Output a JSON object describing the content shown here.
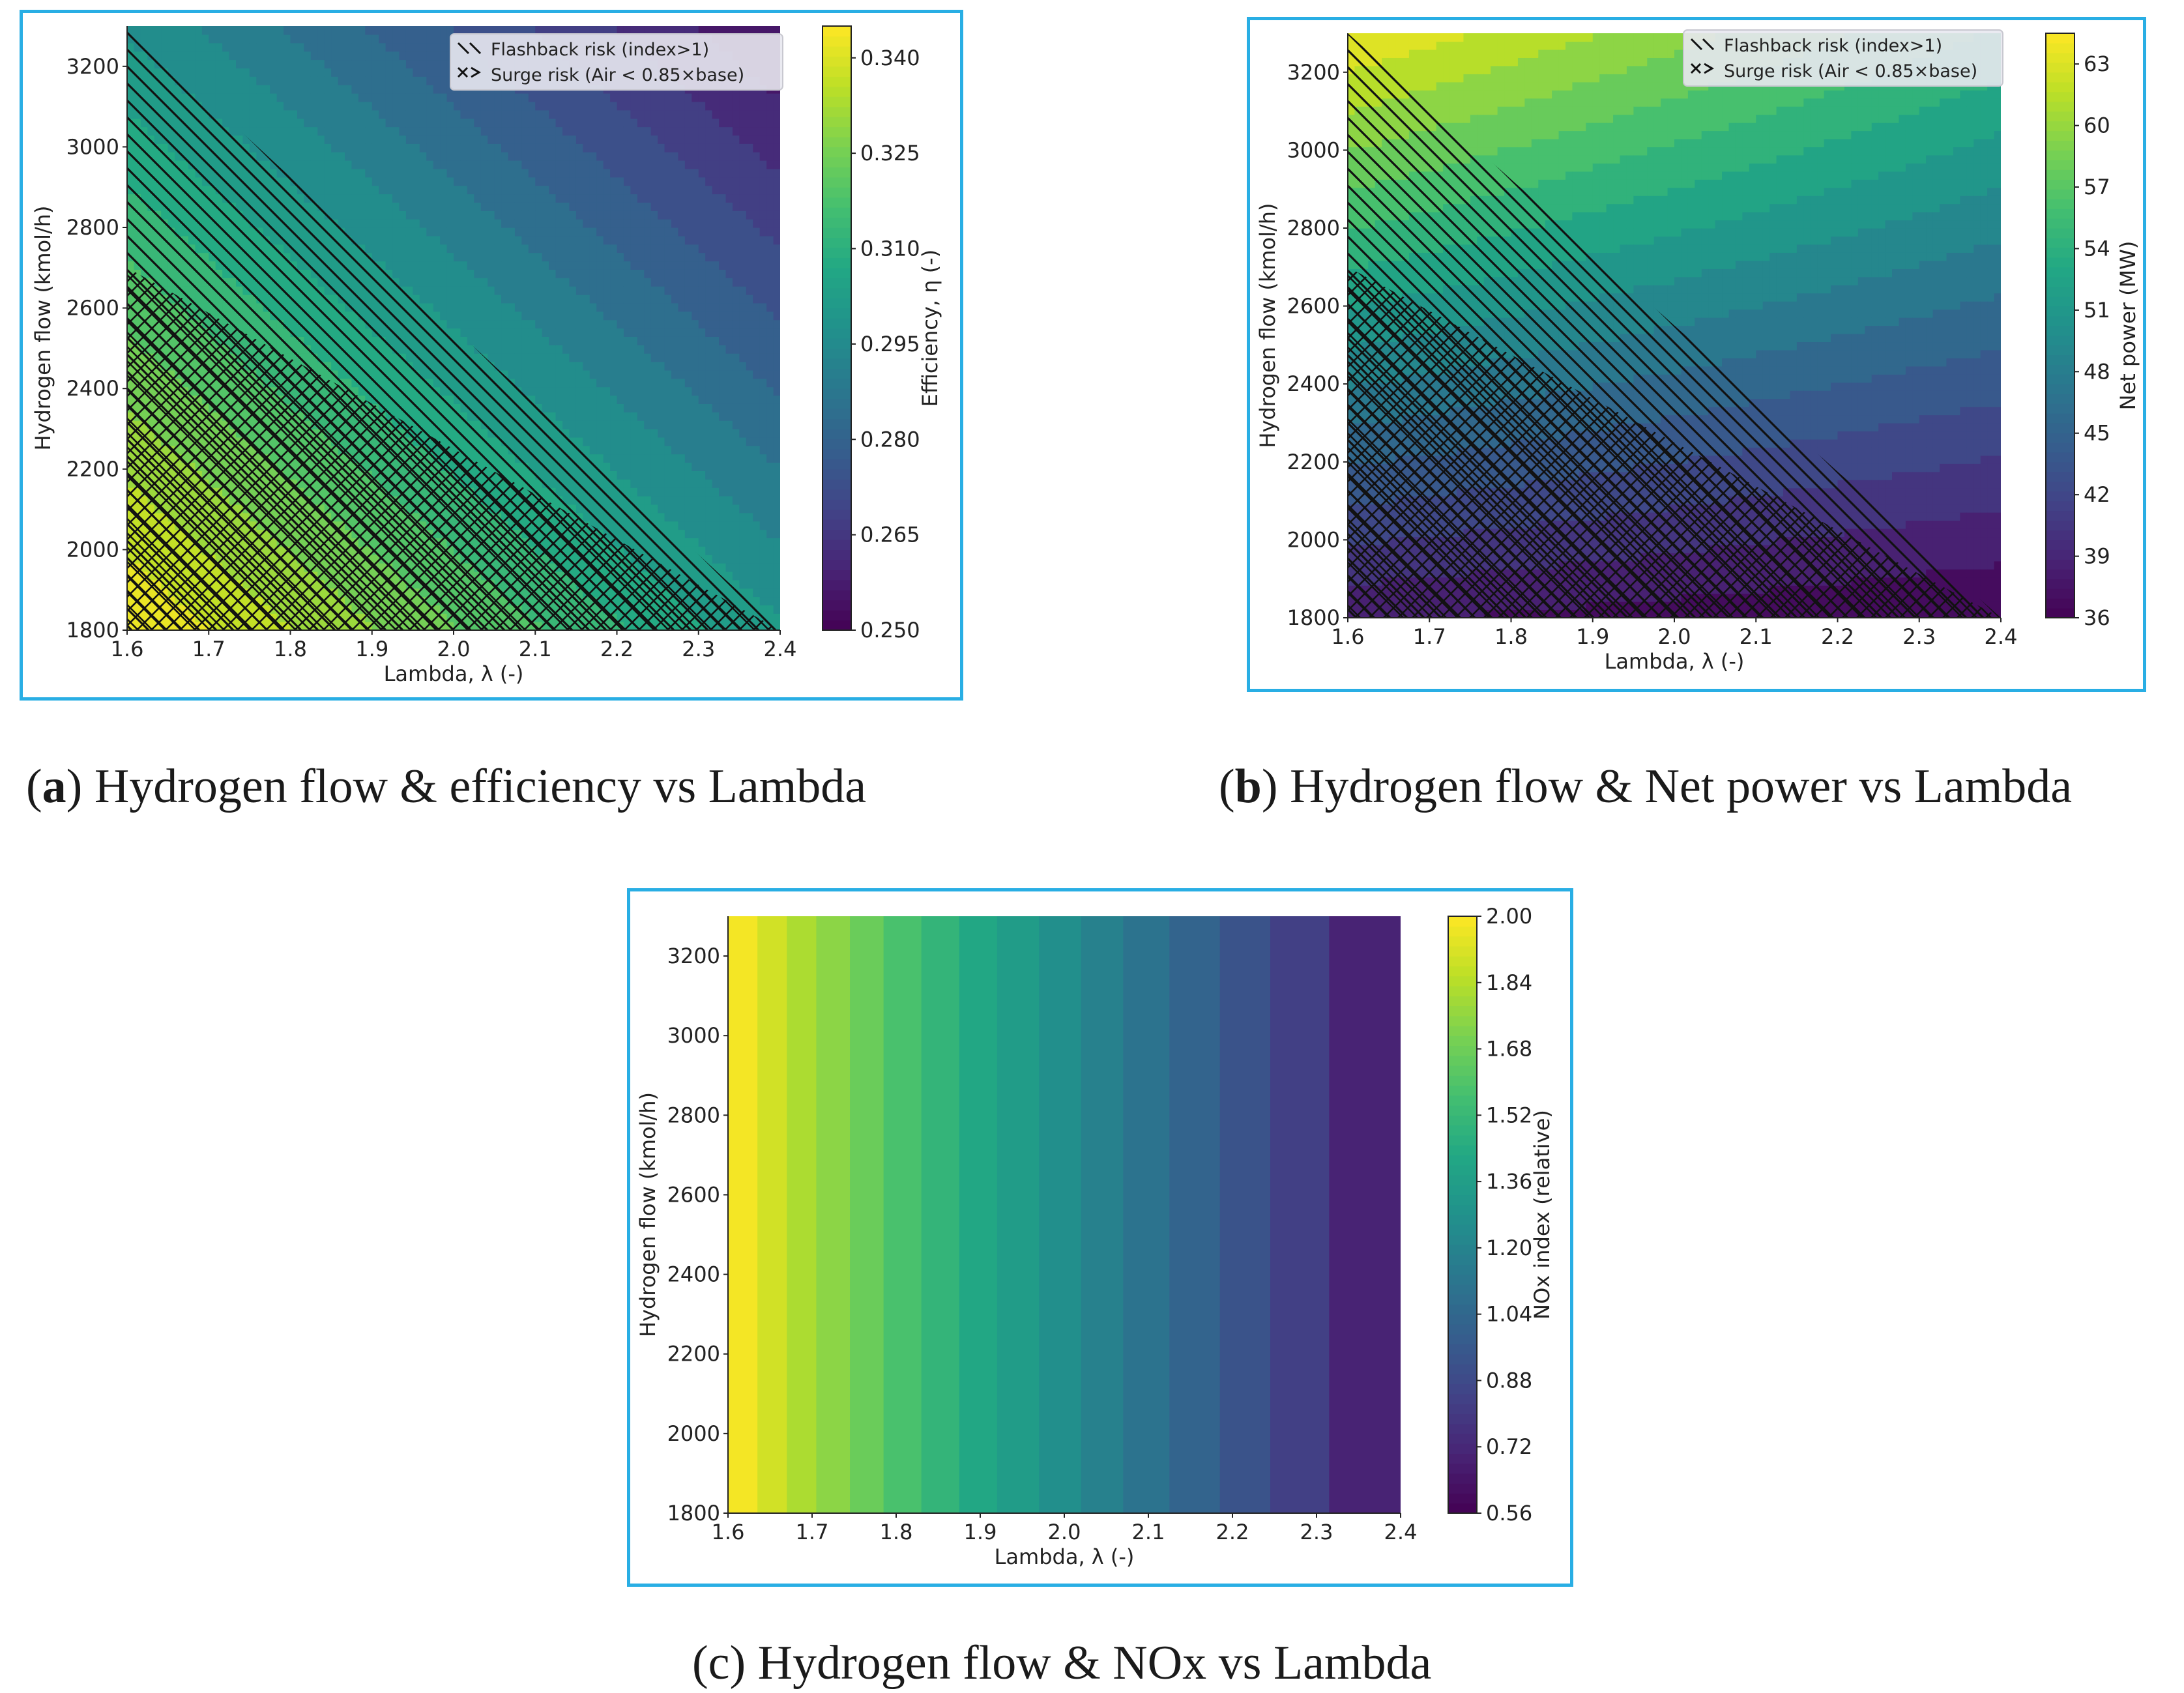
{
  "figures": [
    {
      "id": "a",
      "caption": {
        "letter": "a",
        "text": "Hydrogen flow & efficiency vs Lambda"
      },
      "legend": {
        "flashback": "Flashback risk (index>1)",
        "surge": "Surge risk (Air < 0.85×base)"
      }
    },
    {
      "id": "b",
      "caption": {
        "letter": "b",
        "text": "Hydrogen flow & Net power vs Lambda"
      },
      "legend": {
        "flashback": "Flashback risk (index>1)",
        "surge": "Surge risk (Air < 0.85×base)"
      }
    },
    {
      "id": "c",
      "caption": {
        "letter": "",
        "text": "(c) Hydrogen flow & NOx vs Lambda"
      },
      "legend": null
    }
  ],
  "colors": {
    "frame": "#29aee4",
    "viridis": [
      "#440154",
      "#482475",
      "#414487",
      "#355f8d",
      "#2a788e",
      "#21918c",
      "#22a884",
      "#44bf70",
      "#7ad151",
      "#bddf26",
      "#fde725"
    ]
  },
  "chart_data": [
    {
      "type": "heatmap",
      "subtype": "filled-contour",
      "xlabel": "Lambda, λ (-)",
      "ylabel": "Hydrogen flow (kmol/h)",
      "colorbar_label": "Efficiency, η (-)",
      "xlim": [
        1.6,
        2.4
      ],
      "ylim": [
        1800,
        3300
      ],
      "x_ticks": [
        "1.6",
        "1.7",
        "1.8",
        "1.9",
        "2.0",
        "2.1",
        "2.2",
        "2.3",
        "2.4"
      ],
      "y_ticks": [
        "1800",
        "2000",
        "2200",
        "2400",
        "2600",
        "2800",
        "3000",
        "3200"
      ],
      "colorbar_ticks": [
        "0.250",
        "0.265",
        "0.280",
        "0.295",
        "0.310",
        "0.325",
        "0.340"
      ],
      "colorbar_range": [
        0.25,
        0.345
      ],
      "z_at_corners": {
        "low_lambda_low_flow": 0.345,
        "high_lambda_low_flow": 0.3,
        "low_lambda_high_flow": 0.298,
        "high_lambda_high_flow": 0.253
      },
      "levels": 16,
      "flashback_boundary_flow_at_lambda": [
        [
          1.6,
          3300
        ],
        [
          2.4,
          1800
        ]
      ],
      "surge_boundary_flow_at_lambda": [
        [
          1.6,
          2700
        ],
        [
          2.4,
          1800
        ]
      ]
    },
    {
      "type": "heatmap",
      "subtype": "filled-contour",
      "xlabel": "Lambda, λ (-)",
      "ylabel": "Hydrogen flow (kmol/h)",
      "colorbar_label": "Net power (MW)",
      "xlim": [
        1.6,
        2.4
      ],
      "ylim": [
        1800,
        3300
      ],
      "x_ticks": [
        "1.6",
        "1.7",
        "1.8",
        "1.9",
        "2.0",
        "2.1",
        "2.2",
        "2.3",
        "2.4"
      ],
      "y_ticks": [
        "1800",
        "2000",
        "2200",
        "2400",
        "2600",
        "2800",
        "3000",
        "3200"
      ],
      "colorbar_ticks": [
        "36",
        "39",
        "42",
        "45",
        "48",
        "51",
        "54",
        "57",
        "60",
        "63"
      ],
      "colorbar_range": [
        36,
        64.5
      ],
      "z_at_corners": {
        "low_lambda_low_flow": 38,
        "high_lambda_low_flow": 36,
        "low_lambda_high_flow": 64,
        "high_lambda_high_flow": 55
      },
      "levels": 16,
      "flashback_boundary_flow_at_lambda": [
        [
          1.6,
          3300
        ],
        [
          2.4,
          1800
        ]
      ],
      "surge_boundary_flow_at_lambda": [
        [
          1.6,
          2700
        ],
        [
          2.4,
          1800
        ]
      ]
    },
    {
      "type": "heatmap",
      "subtype": "filled-contour",
      "xlabel": "Lambda, λ (-)",
      "ylabel": "Hydrogen flow (kmol/h)",
      "colorbar_label": "NOx index (relative)",
      "xlim": [
        1.6,
        2.4
      ],
      "ylim": [
        1800,
        3300
      ],
      "x_ticks": [
        "1.6",
        "1.7",
        "1.8",
        "1.9",
        "2.0",
        "2.1",
        "2.2",
        "2.3",
        "2.4"
      ],
      "y_ticks": [
        "1800",
        "2000",
        "2200",
        "2400",
        "2600",
        "2800",
        "3000",
        "3200"
      ],
      "colorbar_ticks": [
        "0.56",
        "0.72",
        "0.88",
        "1.04",
        "1.20",
        "1.36",
        "1.52",
        "1.68",
        "1.84",
        "2.00"
      ],
      "colorbar_range": [
        0.56,
        2.0
      ],
      "x_band_edges": [
        1.6,
        1.635,
        1.67,
        1.705,
        1.745,
        1.785,
        1.83,
        1.875,
        1.92,
        1.97,
        2.02,
        2.07,
        2.125,
        2.185,
        2.245,
        2.315,
        2.4
      ],
      "band_values": [
        1.98,
        1.9,
        1.82,
        1.75,
        1.67,
        1.58,
        1.5,
        1.42,
        1.35,
        1.27,
        1.19,
        1.11,
        1.02,
        0.93,
        0.83,
        0.7
      ]
    }
  ]
}
